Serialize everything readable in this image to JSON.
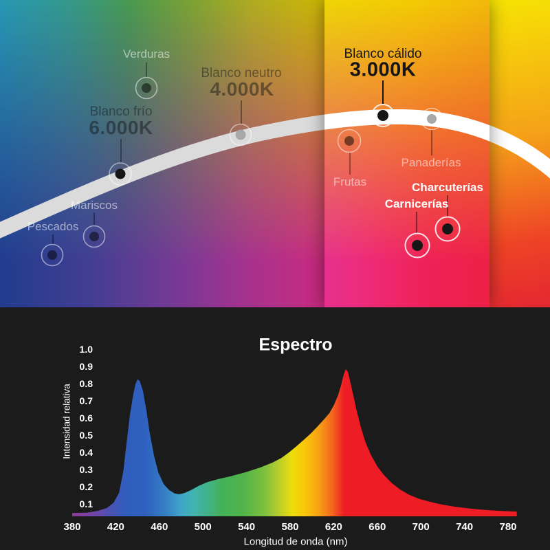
{
  "top_panel": {
    "groups": [
      {
        "id": "frio",
        "label": "Blanco frío",
        "kelvin": "6.000K"
      },
      {
        "id": "neutro",
        "label": "Blanco neutro",
        "kelvin": "4.000K"
      },
      {
        "id": "calido",
        "label": "Blanco cálido",
        "kelvin": "3.000K"
      }
    ],
    "applications": {
      "verduras": "Verduras",
      "mariscos": "Mariscos",
      "pescados": "Pescados",
      "frutas": "Frutas",
      "panaderias": "Panaderías",
      "charcuterias": "Charcuterías",
      "carnicerias": "Carnicerías"
    },
    "background": {
      "top_colors": [
        "#2eb1d2 0%",
        "#3eb3a2 14%",
        "#54b360 26%",
        "#8cbd3e 38%",
        "#cfc926 52%",
        "#eed606 66%",
        "#f3cb04 85%",
        "#f2b90a 100%"
      ],
      "bottom_colors": [
        "#2746a5 0%",
        "#4d48aa 18%",
        "#8a43ae 36%",
        "#bf3ba6 50%",
        "#e2349a 62%",
        "#ee2a78 75%",
        "#ee2156 88%",
        "#ed2047 100%"
      ],
      "right_panel_colors": [
        "#f6e303 0%",
        "#f5a019 45%",
        "#ee4326 78%",
        "#e42731 100%"
      ]
    },
    "curve_color": "#ffffff"
  },
  "chart_data": {
    "type": "area",
    "title": "Espectro",
    "xlabel": "Longitud de onda (nm)",
    "ylabel": "Intensidad relativa",
    "xticks": [
      380,
      420,
      460,
      500,
      540,
      580,
      620,
      660,
      700,
      740,
      780
    ],
    "yticks": [
      "1.0",
      "0.9",
      "0.8",
      "0.7",
      "0.6",
      "0.5",
      "0.4",
      "0.3",
      "0.2",
      "0.1"
    ],
    "xlim": [
      380,
      788
    ],
    "ylim": [
      0,
      1.0
    ],
    "grid": false,
    "legend": false,
    "background": "#1b1b1b",
    "blue_peak": {
      "wavelength": 440,
      "intensity": 0.81
    },
    "red_peak": {
      "wavelength": 631,
      "intensity": 0.87
    },
    "points": [
      [
        380,
        0.02
      ],
      [
        394,
        0.022
      ],
      [
        404,
        0.033
      ],
      [
        412,
        0.05
      ],
      [
        418,
        0.08
      ],
      [
        423,
        0.14
      ],
      [
        427,
        0.27
      ],
      [
        430,
        0.44
      ],
      [
        433,
        0.6
      ],
      [
        436,
        0.72
      ],
      [
        438,
        0.78
      ],
      [
        440,
        0.81
      ],
      [
        442,
        0.8
      ],
      [
        445,
        0.74
      ],
      [
        448,
        0.63
      ],
      [
        451,
        0.5
      ],
      [
        455,
        0.36
      ],
      [
        459,
        0.26
      ],
      [
        464,
        0.19
      ],
      [
        469,
        0.155
      ],
      [
        474,
        0.135
      ],
      [
        478,
        0.13
      ],
      [
        483,
        0.138
      ],
      [
        489,
        0.155
      ],
      [
        496,
        0.18
      ],
      [
        504,
        0.202
      ],
      [
        514,
        0.22
      ],
      [
        526,
        0.238
      ],
      [
        540,
        0.262
      ],
      [
        553,
        0.29
      ],
      [
        564,
        0.318
      ],
      [
        572,
        0.345
      ],
      [
        579,
        0.378
      ],
      [
        586,
        0.415
      ],
      [
        593,
        0.455
      ],
      [
        599,
        0.49
      ],
      [
        605,
        0.53
      ],
      [
        611,
        0.572
      ],
      [
        616,
        0.61
      ],
      [
        620,
        0.655
      ],
      [
        624,
        0.715
      ],
      [
        627,
        0.78
      ],
      [
        629,
        0.835
      ],
      [
        631,
        0.87
      ],
      [
        633,
        0.855
      ],
      [
        635,
        0.8
      ],
      [
        638,
        0.715
      ],
      [
        641,
        0.625
      ],
      [
        645,
        0.525
      ],
      [
        649,
        0.44
      ],
      [
        654,
        0.365
      ],
      [
        660,
        0.295
      ],
      [
        666,
        0.245
      ],
      [
        673,
        0.198
      ],
      [
        681,
        0.158
      ],
      [
        689,
        0.128
      ],
      [
        698,
        0.104
      ],
      [
        708,
        0.086
      ],
      [
        719,
        0.07
      ],
      [
        731,
        0.057
      ],
      [
        745,
        0.046
      ],
      [
        759,
        0.038
      ],
      [
        773,
        0.032
      ],
      [
        788,
        0.028
      ]
    ],
    "gradient_stops": [
      [
        380,
        "#8b3a9b"
      ],
      [
        400,
        "#7244a7"
      ],
      [
        414,
        "#4d51b3"
      ],
      [
        428,
        "#315dbd"
      ],
      [
        448,
        "#2f62c0"
      ],
      [
        466,
        "#3780c5"
      ],
      [
        480,
        "#3fa6c9"
      ],
      [
        491,
        "#41b3b0"
      ],
      [
        504,
        "#40b289"
      ],
      [
        518,
        "#44b158"
      ],
      [
        538,
        "#52b449"
      ],
      [
        556,
        "#7cc03d"
      ],
      [
        570,
        "#b9cd2c"
      ],
      [
        582,
        "#eedd0b"
      ],
      [
        594,
        "#f9c60b"
      ],
      [
        607,
        "#f79e14"
      ],
      [
        619,
        "#f4661e"
      ],
      [
        630,
        "#ee1c24"
      ],
      [
        788,
        "#ee1c24"
      ]
    ]
  }
}
